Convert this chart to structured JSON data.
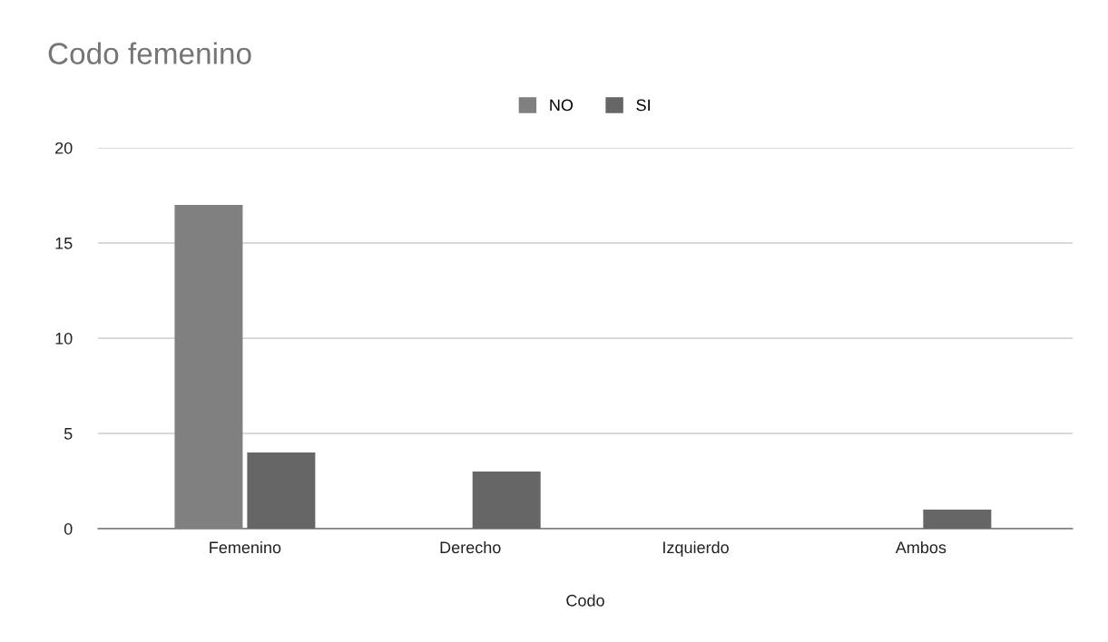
{
  "chart_data": {
    "type": "bar",
    "title": "Codo femenino",
    "xlabel": "Codo",
    "categories": [
      "Femenino",
      "Derecho",
      "Izquierdo",
      "Ambos"
    ],
    "series": [
      {
        "name": "NO",
        "color": "#808080",
        "values": [
          17,
          0,
          0,
          0
        ]
      },
      {
        "name": "SI",
        "color": "#666666",
        "values": [
          4,
          3,
          0,
          1
        ]
      }
    ],
    "ylim": [
      0,
      20
    ],
    "yticks": [
      0,
      5,
      10,
      15,
      20
    ],
    "grid": "y",
    "legend": "top"
  }
}
